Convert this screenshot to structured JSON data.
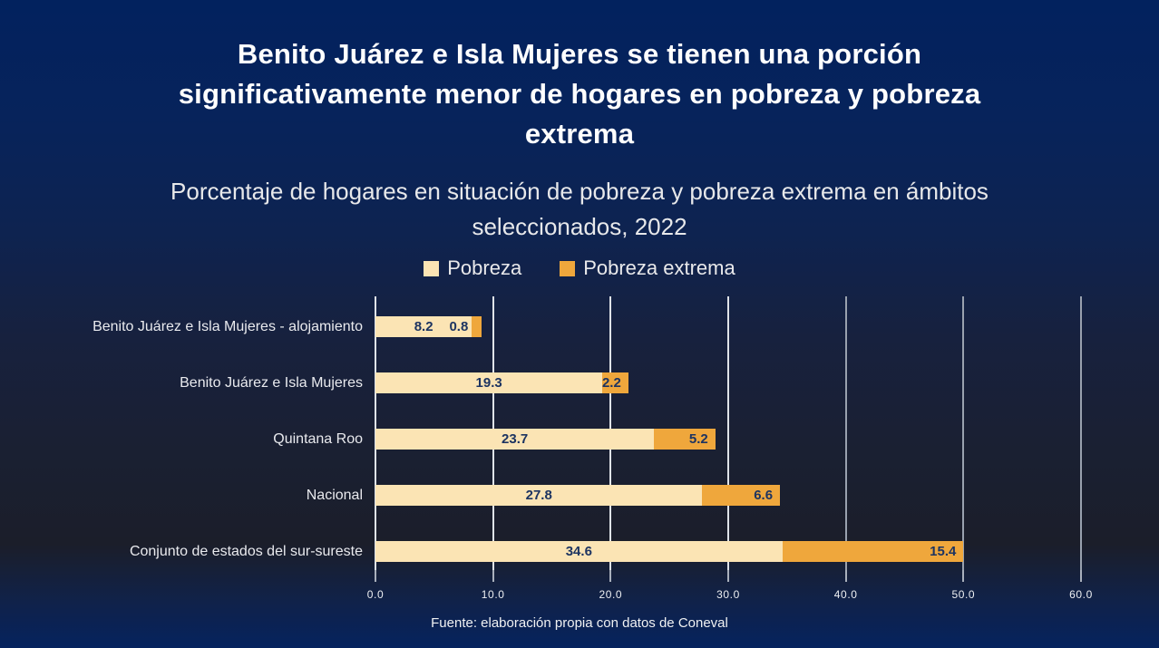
{
  "slide": {
    "title": "Benito Juárez e Isla Mujeres se tienen una porción significativamente menor de hogares en pobreza y pobreza extrema",
    "subtitle": "Porcentaje de hogares en situación de pobreza y pobreza extrema en ámbitos seleccionados, 2022",
    "source": "Fuente: elaboración propia con datos de Coneval"
  },
  "colors": {
    "background_top": "#02225E",
    "background_dark": "#1B1E2A",
    "pobreza": "#FBE4B4",
    "pobreza_extrema": "#EFA73C",
    "value_label": "#1D3461",
    "gridline_bright": "#DFE3E8",
    "gridline_dim": "#99A1AE",
    "tick": "#A9B0BC",
    "title_text": "#FFFFFF"
  },
  "chart_data": {
    "type": "bar",
    "orientation": "horizontal",
    "stacked": true,
    "title": "Porcentaje de hogares en situación de pobreza y pobreza extrema en ámbitos seleccionados, 2022",
    "categories": [
      "Benito Juárez e Isla Mujeres - alojamiento",
      "Benito Juárez e Isla Mujeres",
      "Quintana Roo",
      "Nacional",
      "Conjunto de estados del sur-sureste"
    ],
    "series": [
      {
        "name": "Pobreza",
        "color": "#FBE4B4",
        "values": [
          8.2,
          19.3,
          23.7,
          27.8,
          34.6
        ]
      },
      {
        "name": "Pobreza extrema",
        "color": "#EFA73C",
        "values": [
          0.8,
          2.2,
          5.2,
          6.6,
          15.4
        ]
      }
    ],
    "xlim": [
      0,
      60
    ],
    "x_ticks": [
      0,
      10,
      20,
      30,
      40,
      50,
      60
    ],
    "x_tick_labels": [
      "0.0",
      "10.0",
      "20.0",
      "30.0",
      "40.0",
      "50.0",
      "60.0"
    ],
    "legend_position": "top",
    "grid": "vertical",
    "value_labels": "on"
  }
}
